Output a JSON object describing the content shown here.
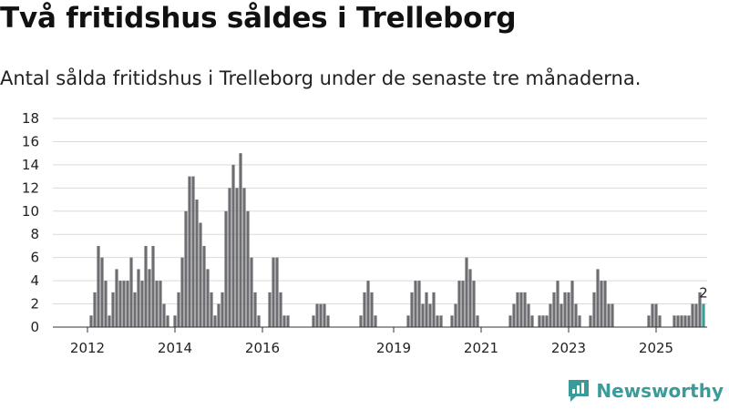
{
  "header": {
    "title": "Två fritidshus såldes i Trelleborg",
    "subtitle": "Antal sålda fritidshus i Trelleborg under de senaste tre månaderna."
  },
  "brand": {
    "name": "Newsworthy",
    "color": "#3a9c9a"
  },
  "chart_data": {
    "type": "bar",
    "title": "Två fritidshus såldes i Trelleborg",
    "subtitle": "Antal sålda fritidshus i Trelleborg under de senaste tre månaderna.",
    "xlabel": "",
    "ylabel": "",
    "ylim": [
      0,
      18
    ],
    "yticks": [
      0,
      2,
      4,
      6,
      8,
      10,
      12,
      14,
      16,
      18
    ],
    "xticks": [
      {
        "label": "2012",
        "month_index": 0
      },
      {
        "label": "2014",
        "month_index": 24
      },
      {
        "label": "2016",
        "month_index": 48
      },
      {
        "label": "2019",
        "month_index": 84
      },
      {
        "label": "2021",
        "month_index": 108
      },
      {
        "label": "2023",
        "month_index": 132
      },
      {
        "label": "2025",
        "month_index": 156
      }
    ],
    "grid": true,
    "bar_color": "#6d6e72",
    "highlight_color": "#3a9c9a",
    "start_month": "2011-07",
    "values": [
      0,
      0,
      0,
      0,
      0,
      0,
      0,
      0,
      0,
      0,
      1,
      3,
      7,
      6,
      4,
      1,
      3,
      5,
      4,
      4,
      4,
      6,
      3,
      5,
      4,
      7,
      5,
      7,
      4,
      4,
      2,
      1,
      0,
      1,
      3,
      6,
      10,
      13,
      13,
      11,
      9,
      7,
      5,
      3,
      1,
      2,
      3,
      10,
      12,
      14,
      12,
      15,
      12,
      10,
      6,
      3,
      1,
      0,
      0,
      3,
      6,
      6,
      3,
      1,
      1,
      0,
      0,
      0,
      0,
      0,
      0,
      1,
      2,
      2,
      2,
      1,
      0,
      0,
      0,
      0,
      0,
      0,
      0,
      0,
      1,
      3,
      4,
      3,
      1,
      0,
      0,
      0,
      0,
      0,
      0,
      0,
      0,
      1,
      3,
      4,
      4,
      2,
      3,
      2,
      3,
      1,
      1,
      0,
      0,
      1,
      2,
      4,
      4,
      6,
      5,
      4,
      1,
      0,
      0,
      0,
      0,
      0,
      0,
      0,
      0,
      1,
      2,
      3,
      3,
      3,
      2,
      1,
      0,
      1,
      1,
      1,
      2,
      3,
      4,
      2,
      3,
      3,
      4,
      2,
      1,
      0,
      0,
      1,
      3,
      5,
      4,
      4,
      2,
      2,
      0,
      0,
      0,
      0,
      0,
      0,
      0,
      0,
      0,
      1,
      2,
      2,
      1,
      0,
      0,
      0,
      1,
      1,
      1,
      1,
      1,
      2,
      2,
      3,
      2
    ],
    "highlight_last": true,
    "annotations": [
      {
        "label": "2",
        "at": "last"
      }
    ]
  }
}
